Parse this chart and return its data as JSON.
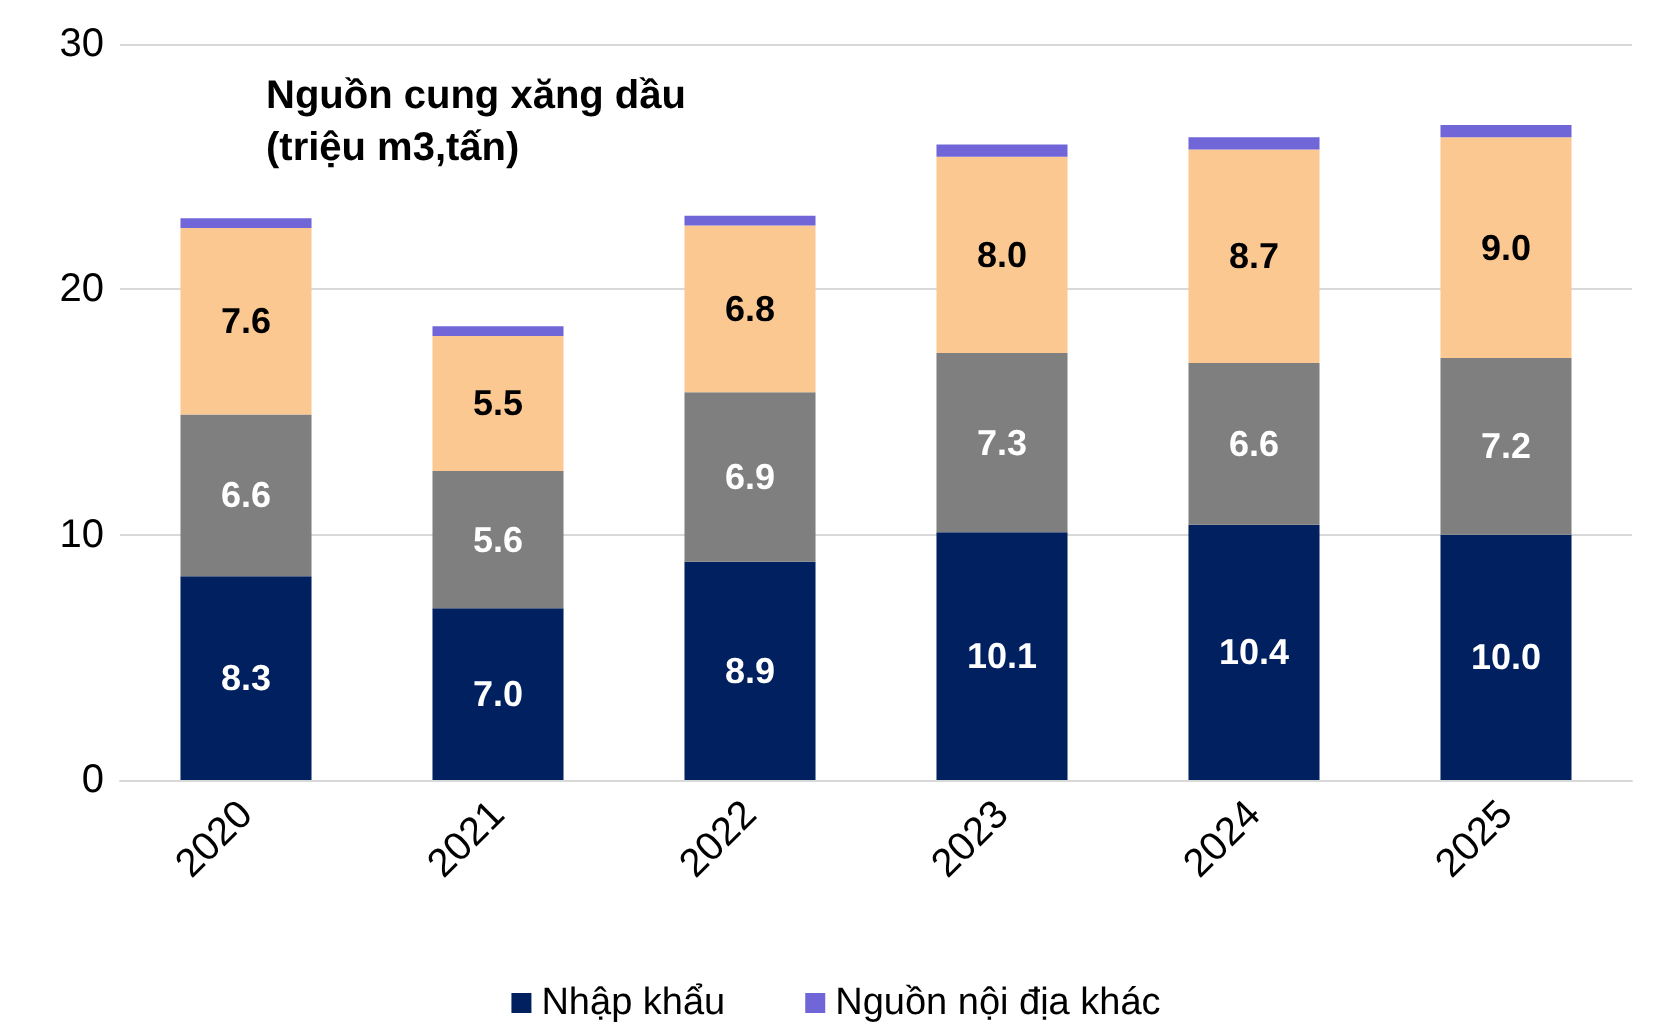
{
  "chart_data": {
    "type": "bar",
    "title": "Nguồn cung xăng dầu\n(triệu m3,tấn)",
    "categories": [
      "2020",
      "2021",
      "2022",
      "2023",
      "2024",
      "2025"
    ],
    "stacked": true,
    "ylim": [
      0,
      30
    ],
    "yticks": [
      0,
      10,
      20,
      30
    ],
    "grid": "y",
    "legend": "bottom",
    "series": [
      {
        "name": "Nhập khẩu",
        "color": "#002060",
        "values": [
          8.3,
          7.0,
          8.9,
          10.1,
          10.4,
          10.0
        ],
        "value_labels": [
          "8.3",
          "7.0",
          "8.9",
          "10.1",
          "10.4",
          "10.0"
        ]
      },
      {
        "color": "#7f7f7f",
        "values": [
          6.6,
          5.6,
          6.9,
          7.3,
          6.6,
          7.2
        ],
        "value_labels": [
          "6.6",
          "5.6",
          "6.9",
          "7.3",
          "6.6",
          "7.2"
        ]
      },
      {
        "color": "#fcc892",
        "values": [
          7.6,
          5.5,
          6.8,
          8.0,
          8.7,
          9.0
        ],
        "value_labels": [
          "7.6",
          "5.5",
          "6.8",
          "8.0",
          "8.7",
          "9.0"
        ]
      },
      {
        "name": "Nguồn nội địa khác",
        "color": "#7066d8",
        "values": [
          0.4,
          0.4,
          0.4,
          0.5,
          0.5,
          0.5
        ]
      }
    ]
  }
}
